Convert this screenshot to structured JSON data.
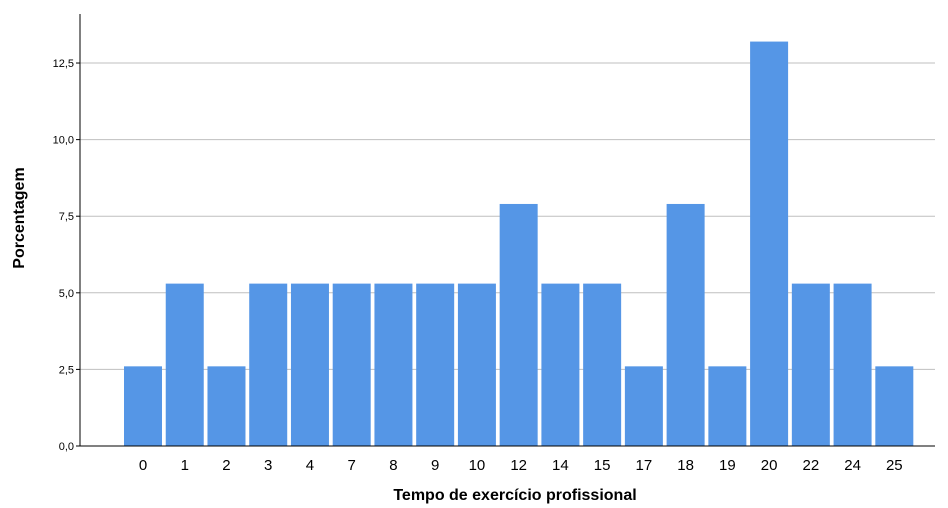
{
  "chart_data": {
    "type": "bar",
    "title": "",
    "xlabel": "Tempo de exercício profissional",
    "ylabel": "Porcentagem",
    "categories": [
      "0",
      "1",
      "2",
      "3",
      "4",
      "7",
      "8",
      "9",
      "10",
      "12",
      "14",
      "15",
      "17",
      "18",
      "19",
      "20",
      "22",
      "24",
      "25"
    ],
    "values": [
      2.6,
      5.3,
      2.6,
      5.3,
      5.3,
      5.3,
      5.3,
      5.3,
      5.3,
      7.9,
      5.3,
      5.3,
      2.6,
      7.9,
      2.6,
      13.2,
      5.3,
      5.3,
      2.6
    ],
    "ylim": [
      0,
      14.1
    ],
    "yticks": [
      0,
      2.5,
      5,
      7.5,
      10,
      12.5
    ],
    "ytick_labels": [
      "0,0",
      "2,5",
      "5,0",
      "7,5",
      "10,0",
      "12,5"
    ],
    "grid": true,
    "legend": "none",
    "colors": {
      "bar": "#5596e6",
      "grid": "#bfbfbf",
      "axis": "#000000"
    }
  }
}
